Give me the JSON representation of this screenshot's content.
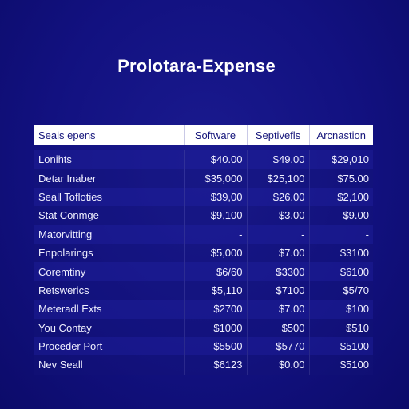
{
  "title": "Prolotara-Expense",
  "table": {
    "headers": [
      "Seals epens",
      "Software",
      "Septivefls",
      "Arcnastion"
    ],
    "rows": [
      {
        "label": "Lonihts",
        "values": [
          "$40.00",
          "$49.00",
          "$29,010"
        ]
      },
      {
        "label": "Detar Inaber",
        "values": [
          "$35,000",
          "$25,100",
          "$75.00"
        ]
      },
      {
        "label": "Seall Tofloties",
        "values": [
          "$39,00",
          "$26.00",
          "$2,100"
        ]
      },
      {
        "label": "Stat Conmge",
        "values": [
          "$9,100",
          "$3.00",
          "$9.00"
        ]
      },
      {
        "label": "Matorvitting",
        "values": [
          "-",
          "-",
          "-"
        ]
      },
      {
        "label": "Enpolarings",
        "values": [
          "$5,000",
          "$7.00",
          "$3100"
        ]
      },
      {
        "label": "Coremtiny",
        "values": [
          "$6/60",
          "$3300",
          "$6100"
        ]
      },
      {
        "label": "Retswerics",
        "values": [
          "$5,110",
          "$7100",
          "$5/70"
        ]
      },
      {
        "label": "Meteradl Exts",
        "values": [
          "$2700",
          "$7.00",
          "$100"
        ]
      },
      {
        "label": "You Contay",
        "values": [
          "$1000",
          "$500",
          "$510"
        ]
      },
      {
        "label": "Proceder Port",
        "values": [
          "$5500",
          "$5770",
          "$5100"
        ]
      },
      {
        "label": "Nev Seall",
        "values": [
          "$6123",
          "$0.00",
          "$5100"
        ]
      }
    ]
  }
}
